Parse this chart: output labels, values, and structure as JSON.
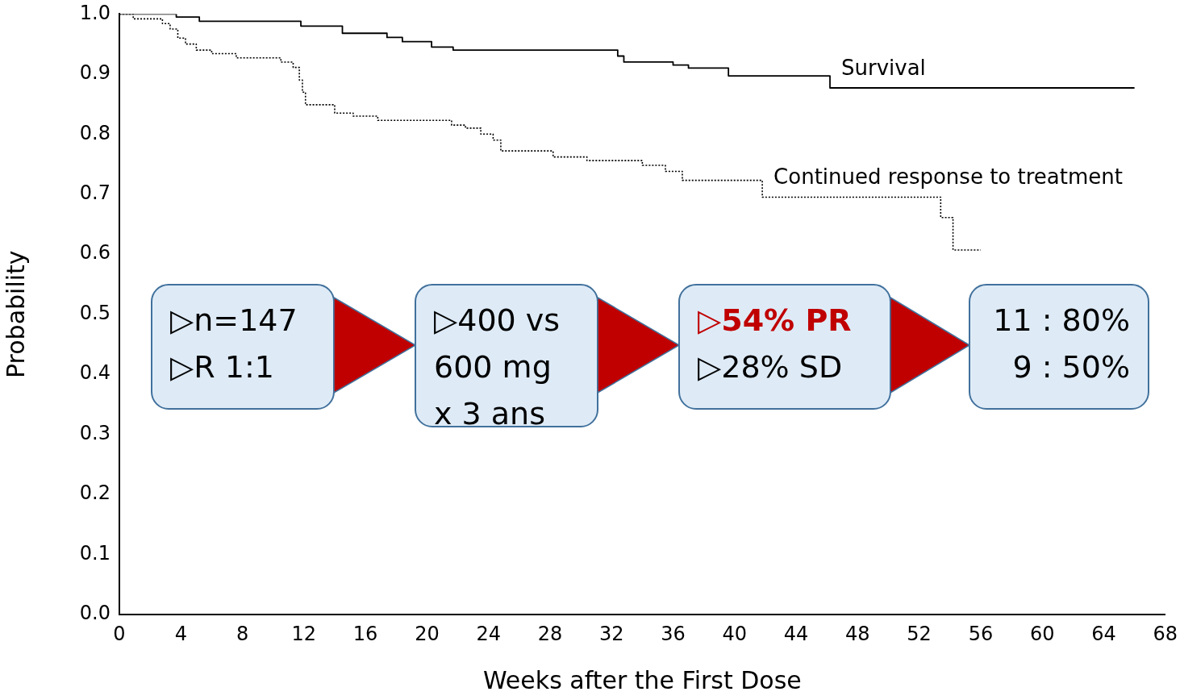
{
  "chart_data": {
    "type": "step",
    "xlabel": "Weeks after the First Dose",
    "ylabel": "Probability",
    "xlim": [
      0,
      68
    ],
    "xticks": [
      0,
      4,
      8,
      12,
      16,
      20,
      24,
      28,
      32,
      36,
      40,
      44,
      48,
      52,
      56,
      60,
      64,
      68
    ],
    "ylim": [
      0,
      1
    ],
    "yticks": [
      {
        "value": 0,
        "label": "0.0"
      },
      0.1,
      0.2,
      0.3,
      0.4,
      0.5,
      0.6,
      0.7,
      0.8,
      0.9,
      {
        "value": 1,
        "label": "1.0"
      }
    ],
    "series": [
      {
        "name": "Survival",
        "color": "#000000",
        "line_style": "solid",
        "x": [
          0,
          3.7,
          5.2,
          11.8,
          14.5,
          17.4,
          18.4,
          20.3,
          21.7,
          32.4,
          32.8,
          36,
          37,
          39.6,
          46.2,
          66
        ],
        "values": [
          1,
          0.995,
          0.988,
          0.98,
          0.968,
          0.961,
          0.954,
          0.945,
          0.94,
          0.93,
          0.92,
          0.915,
          0.91,
          0.897,
          0.877,
          0.877
        ]
      },
      {
        "name": "Continued response to treatment",
        "color": "#000000",
        "line_style": "dotted",
        "x": [
          0,
          0.9,
          2.8,
          3.3,
          3.8,
          4.3,
          5.0,
          6.0,
          7.6,
          10.5,
          11.3,
          11.7,
          11.9,
          12.1,
          14.0,
          15.2,
          16.8,
          21.6,
          22.5,
          23.5,
          24.3,
          24.8,
          28.2,
          30.4,
          34,
          35.5,
          36.6,
          41.8,
          53.4,
          54.2,
          56
        ],
        "values": [
          1,
          0.992,
          0.984,
          0.975,
          0.96,
          0.95,
          0.94,
          0.934,
          0.927,
          0.92,
          0.911,
          0.89,
          0.87,
          0.849,
          0.835,
          0.83,
          0.823,
          0.815,
          0.81,
          0.8,
          0.79,
          0.772,
          0.762,
          0.756,
          0.748,
          0.738,
          0.723,
          0.695,
          0.661,
          0.607,
          0.607
        ]
      }
    ],
    "annotations": [
      "▷n=147\n▷R 1:1",
      "▷400 vs\n600 mg\nx 3 ans",
      "▷54% PR\n▷28% SD",
      "11 : 80%\n9 : 50%"
    ]
  }
}
